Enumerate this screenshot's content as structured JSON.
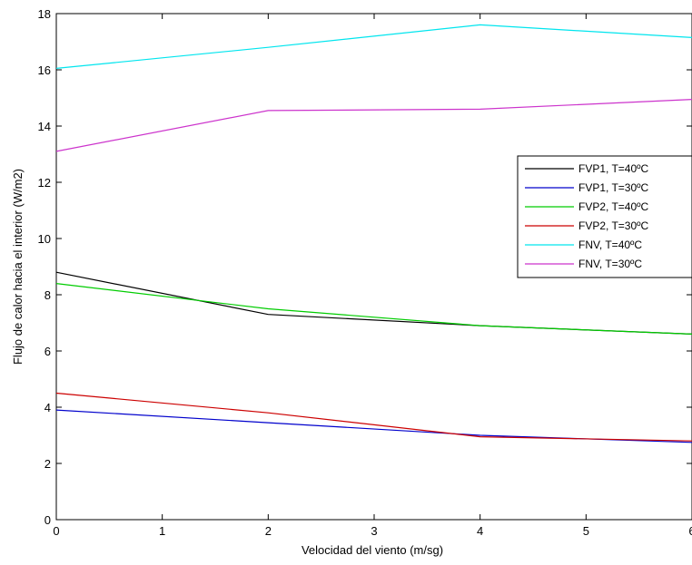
{
  "chart_data": {
    "type": "line",
    "title": "",
    "xlabel": "Velocidad del viento (m/sg)",
    "ylabel": "Flujo de calor hacia el interior (W/m2)",
    "xlim": [
      0,
      6
    ],
    "ylim": [
      0,
      18
    ],
    "xticks": [
      0,
      1,
      2,
      3,
      4,
      5,
      6
    ],
    "yticks": [
      0,
      2,
      4,
      6,
      8,
      10,
      12,
      14,
      16,
      18
    ],
    "grid": false,
    "legend_position": "right",
    "x": [
      0,
      2,
      4,
      6
    ],
    "series": [
      {
        "name": "FVP1, T=40ºC",
        "color": "#000000",
        "values": [
          8.8,
          7.3,
          6.9,
          6.6
        ]
      },
      {
        "name": "FVP1, T=30ºC",
        "color": "#0000cc",
        "values": [
          3.9,
          3.45,
          3.0,
          2.75
        ]
      },
      {
        "name": "FVP2, T=40ºC",
        "color": "#00cc00",
        "values": [
          8.4,
          7.5,
          6.9,
          6.6
        ]
      },
      {
        "name": "FVP2, T=30ºC",
        "color": "#cc0000",
        "values": [
          4.5,
          3.8,
          2.95,
          2.8
        ]
      },
      {
        "name": "FNV,   T=40ºC",
        "color": "#00e5ee",
        "values": [
          16.05,
          16.8,
          17.6,
          17.15
        ]
      },
      {
        "name": "FNV,   T=30ºC",
        "color": "#cc33cc",
        "values": [
          13.1,
          14.55,
          14.6,
          14.95
        ]
      }
    ]
  }
}
